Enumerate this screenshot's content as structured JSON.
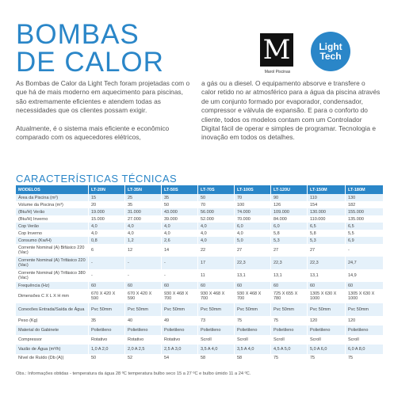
{
  "title": {
    "line1": "BOMBAS",
    "line2": "DE CALOR"
  },
  "logos": {
    "marol_mark": "M",
    "marol_name": "Marol Piscinas",
    "lighttech_line1": "Light",
    "lighttech_line2": "Tech"
  },
  "intro": {
    "left_p1": "As Bombas de Calor da Light Tech foram projetadas com o que há de mais moderno em aquecimento para piscinas, são extremamente eficientes e atendem todas as necessidades que os clientes possam exigir.",
    "left_p2": "Atualmente, é o sistema mais eficiente e econômico comparado com os aquecedores elétricos,",
    "right_p1": "a gás ou a diesel. O equipamento absorve e transfere o calor retido no ar atmosférico para a água da piscina através de um conjunto formado por evaporador, condensador, compressor e válvula de expansão. E para o conforto do cliente, todos os modelos contam com um Controlador Digital fácil de operar e simples de programar. Tecnologia e inovação em todos os detalhes."
  },
  "section_title": "CARACTERÍSTICAS TÉCNICAS",
  "table": {
    "headers": [
      "MODELOS",
      "LT-20N",
      "LT-35N",
      "LT-50S",
      "LT-70S",
      "LT-100S",
      "LT-120U",
      "LT-150M",
      "LT-180M"
    ],
    "rows": [
      [
        "Área da Piscina (m²)",
        "15",
        "25",
        "35",
        "50",
        "70",
        "90",
        "110",
        "130"
      ],
      [
        "Volume da Piscina (m³)",
        "20",
        "35",
        "50",
        "70",
        "100",
        "126",
        "154",
        "182"
      ],
      [
        "(Btu/H) Verão",
        "19.000",
        "31.000",
        "43.000",
        "56.000",
        "74.000",
        "109.000",
        "130.000",
        "155.000"
      ],
      [
        "(Btu/H) Inverno",
        "15.000",
        "27.000",
        "39.000",
        "52.000",
        "70.000",
        "84.000",
        "110.000",
        "135.000"
      ],
      [
        "Cop Verão",
        "4,0",
        "4,0",
        "4,0",
        "4,0",
        "6,0",
        "6,0",
        "6,5",
        "6,5"
      ],
      [
        "Cop Inverno",
        "4,0",
        "4,0",
        "4,0",
        "4,0",
        "4,0",
        "5,8",
        "5,8",
        "5,5"
      ],
      [
        "Consumo (Kw/H)",
        "0,8",
        "1,2",
        "2,6",
        "4,0",
        "5,0",
        "5,3",
        "5,3",
        "6,9"
      ],
      [
        "Corrente Nominal (A) Bifásico 220 (Vac)",
        "6",
        "12",
        "14",
        "22",
        "27",
        "27",
        "27",
        "-"
      ],
      [
        "Corrente Nominal (A) Trifásico 220 (Vac)",
        "-",
        "-",
        "-",
        "17",
        "22,3",
        "22,3",
        "22,3",
        "24,7"
      ],
      [
        "Corrente Nominal (A) Trifásico 380 (Vac)",
        "-",
        "-",
        "-",
        "11",
        "13,1",
        "13,1",
        "13,1",
        "14,9"
      ],
      [
        "Frequência (Hz)",
        "60",
        "60",
        "60",
        "60",
        "60",
        "60",
        "60",
        "60"
      ],
      [
        "Dimensões C X L X H mm",
        "670 X 420 X 590",
        "670 X 420 X 590",
        "930 X 468 X 700",
        "930 X 468 X 700",
        "930 X 468 X 700",
        "725 X 655 X 780",
        "1305 X 630 X 1000",
        "1305 X 630 X 1000"
      ],
      [
        "Conexões Entrada/Saída de Água",
        "Pvc 50mm",
        "Pvc 50mm",
        "Pvc 50mm",
        "Pvc 50mm",
        "Pvc 50mm",
        "Pvc 50mm",
        "Pvc 50mm",
        "Pvc 50mm"
      ],
      [
        "Peso (Kg)",
        "35",
        "40",
        "49",
        "73",
        "75",
        "75",
        "120",
        "120"
      ],
      [
        "Material do Gabinete",
        "Polietileno",
        "Polietileno",
        "Polietileno",
        "Polietileno",
        "Polietileno",
        "Polietileno",
        "Polietileno",
        "Polietileno"
      ],
      [
        "Compressor",
        "Rotativo",
        "Rotativo",
        "Rotativo",
        "Scroll",
        "Scroll",
        "Scroll",
        "Scroll",
        "Scroll"
      ],
      [
        "Vazão de Água (m³/h)",
        "1,0 A 2,0",
        "2,0 A 2,5",
        "2,5 A 3,0",
        "3,5 A 4,0",
        "3,5 A 4,0",
        "4,5 A 5,0",
        "5,0 A 6,0",
        "6,0 A 8,0"
      ],
      [
        "Nível de Ruído (Db (A))",
        "50",
        "52",
        "54",
        "58",
        "58",
        "75",
        "75",
        "75"
      ]
    ]
  },
  "footnote": "Obs.: Informações obtidas - temperatura da água 28 ºC temperatura bulbo seco 15 a 27 ºC e bulbo úmido 11 a 24 ºC."
}
